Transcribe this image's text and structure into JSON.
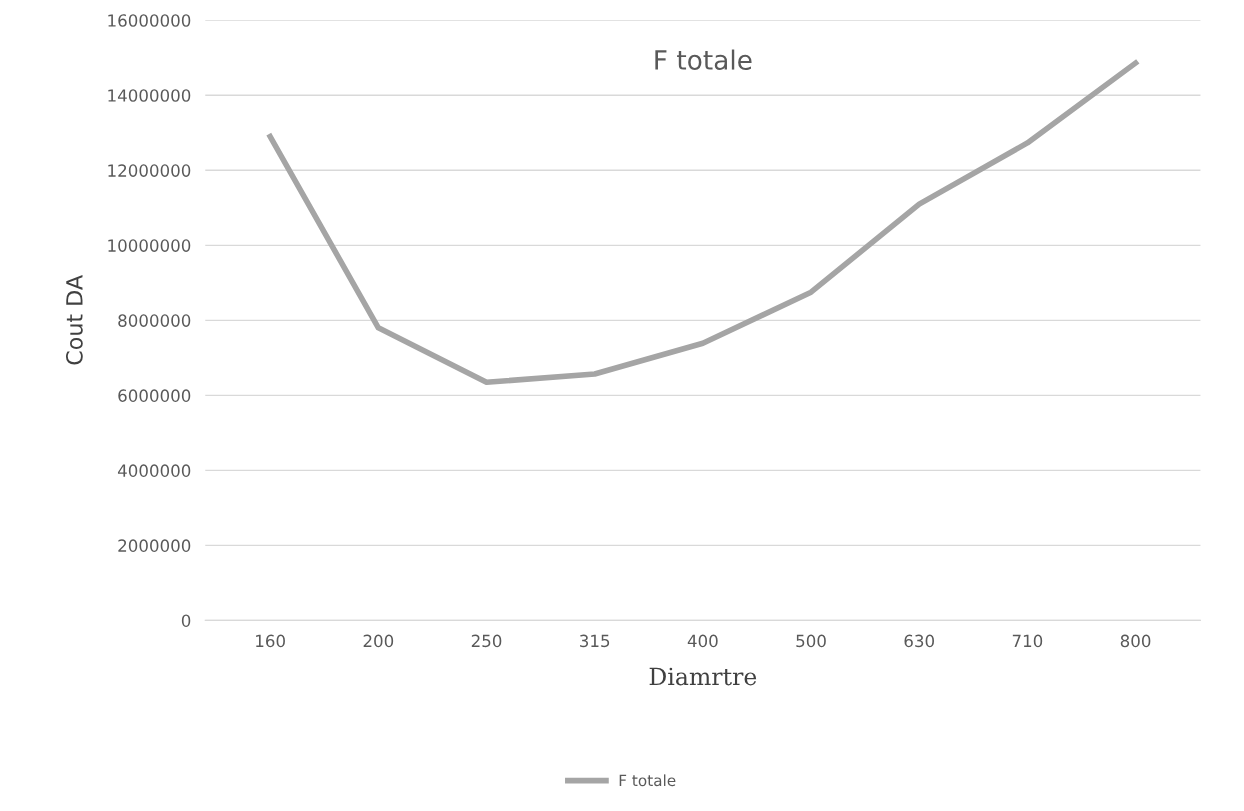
{
  "chart_data": {
    "type": "line",
    "title": "F totale",
    "xlabel": "Diamrtre",
    "ylabel": "Cout DA",
    "categories": [
      "160",
      "200",
      "250",
      "315",
      "400",
      "500",
      "630",
      "710",
      "800"
    ],
    "series": [
      {
        "name": "F totale",
        "color": "#a5a5a5",
        "values": [
          12900000,
          7800000,
          6350000,
          6570000,
          7390000,
          8750000,
          11100000,
          12730000,
          14860000
        ]
      }
    ],
    "ylim": [
      0,
      16000000
    ],
    "yticks": [
      0,
      2000000,
      4000000,
      6000000,
      8000000,
      10000000,
      12000000,
      14000000,
      16000000
    ],
    "grid": "y",
    "legend": "bottom",
    "marker": "none",
    "line_style": "solid"
  }
}
